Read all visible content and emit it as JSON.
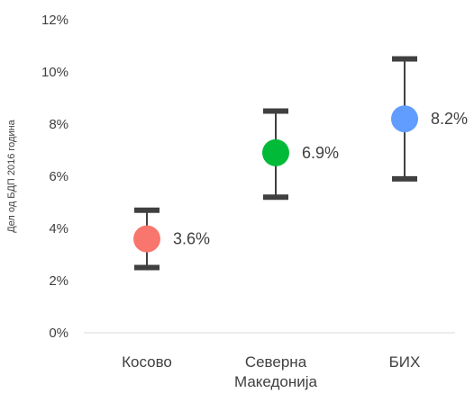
{
  "chart_data": {
    "type": "scatter",
    "title": "",
    "xlabel": "",
    "ylabel": "Дел од БДП 2016 година",
    "ylim": [
      0,
      12
    ],
    "y_ticks": [
      "0%",
      "2%",
      "4%",
      "6%",
      "8%",
      "10%",
      "12%"
    ],
    "grid": false,
    "categories": [
      "Косово",
      "Северна\nМакедонија",
      "БИХ"
    ],
    "points": [
      {
        "category": "Косово",
        "value": 3.6,
        "low": 2.5,
        "high": 4.7,
        "label": "3.6%",
        "color": "#f8766d"
      },
      {
        "category": "Северна\nМакедонија",
        "value": 6.9,
        "low": 5.2,
        "high": 8.5,
        "label": "6.9%",
        "color": "#00ba38"
      },
      {
        "category": "БИХ",
        "value": 8.2,
        "low": 5.9,
        "high": 10.5,
        "label": "8.2%",
        "color": "#619cff"
      }
    ],
    "errorbar_color": "#404040"
  }
}
